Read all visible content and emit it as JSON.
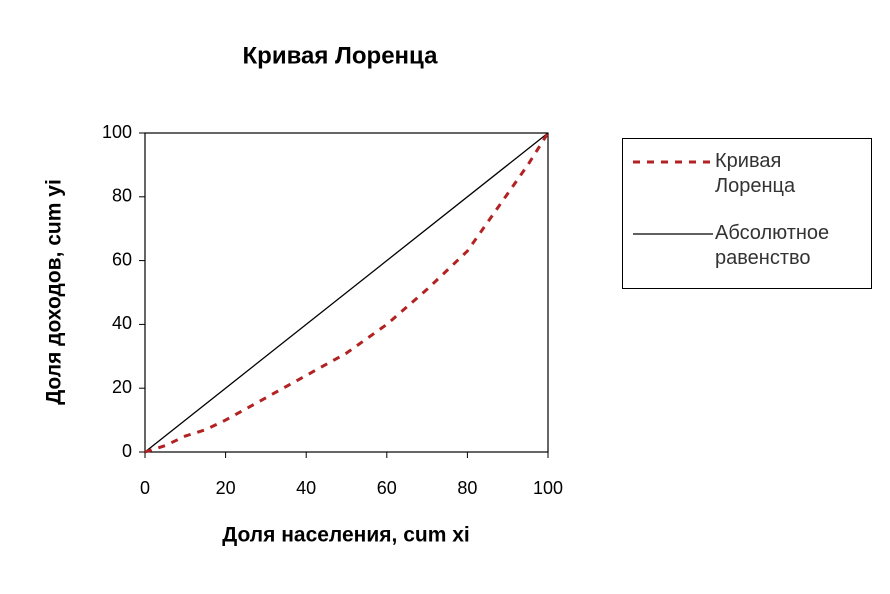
{
  "chart_data": {
    "type": "line",
    "title": "Кривая Лоренца",
    "x_label": "Доля населения, cum xi",
    "y_label": "Доля доходов, cum yi",
    "xlim": [
      0,
      100
    ],
    "ylim": [
      0,
      100
    ],
    "xticks": [
      0,
      20,
      40,
      60,
      80,
      100
    ],
    "yticks": [
      0,
      20,
      40,
      60,
      80,
      100
    ],
    "grid": false,
    "series": [
      {
        "name": "Кривая Лоренца",
        "color": "#b22222",
        "dashed": true,
        "x": [
          0,
          5,
          10,
          15,
          20,
          30,
          40,
          50,
          60,
          70,
          80,
          85,
          90,
          95,
          100
        ],
        "values": [
          0,
          2,
          5,
          7,
          10,
          17,
          24,
          31,
          40,
          51,
          63,
          72,
          81,
          90,
          100
        ]
      },
      {
        "name": "Абсолютное равенство",
        "color": "#000000",
        "dashed": false,
        "x": [
          0,
          100
        ],
        "values": [
          0,
          100
        ]
      }
    ]
  }
}
